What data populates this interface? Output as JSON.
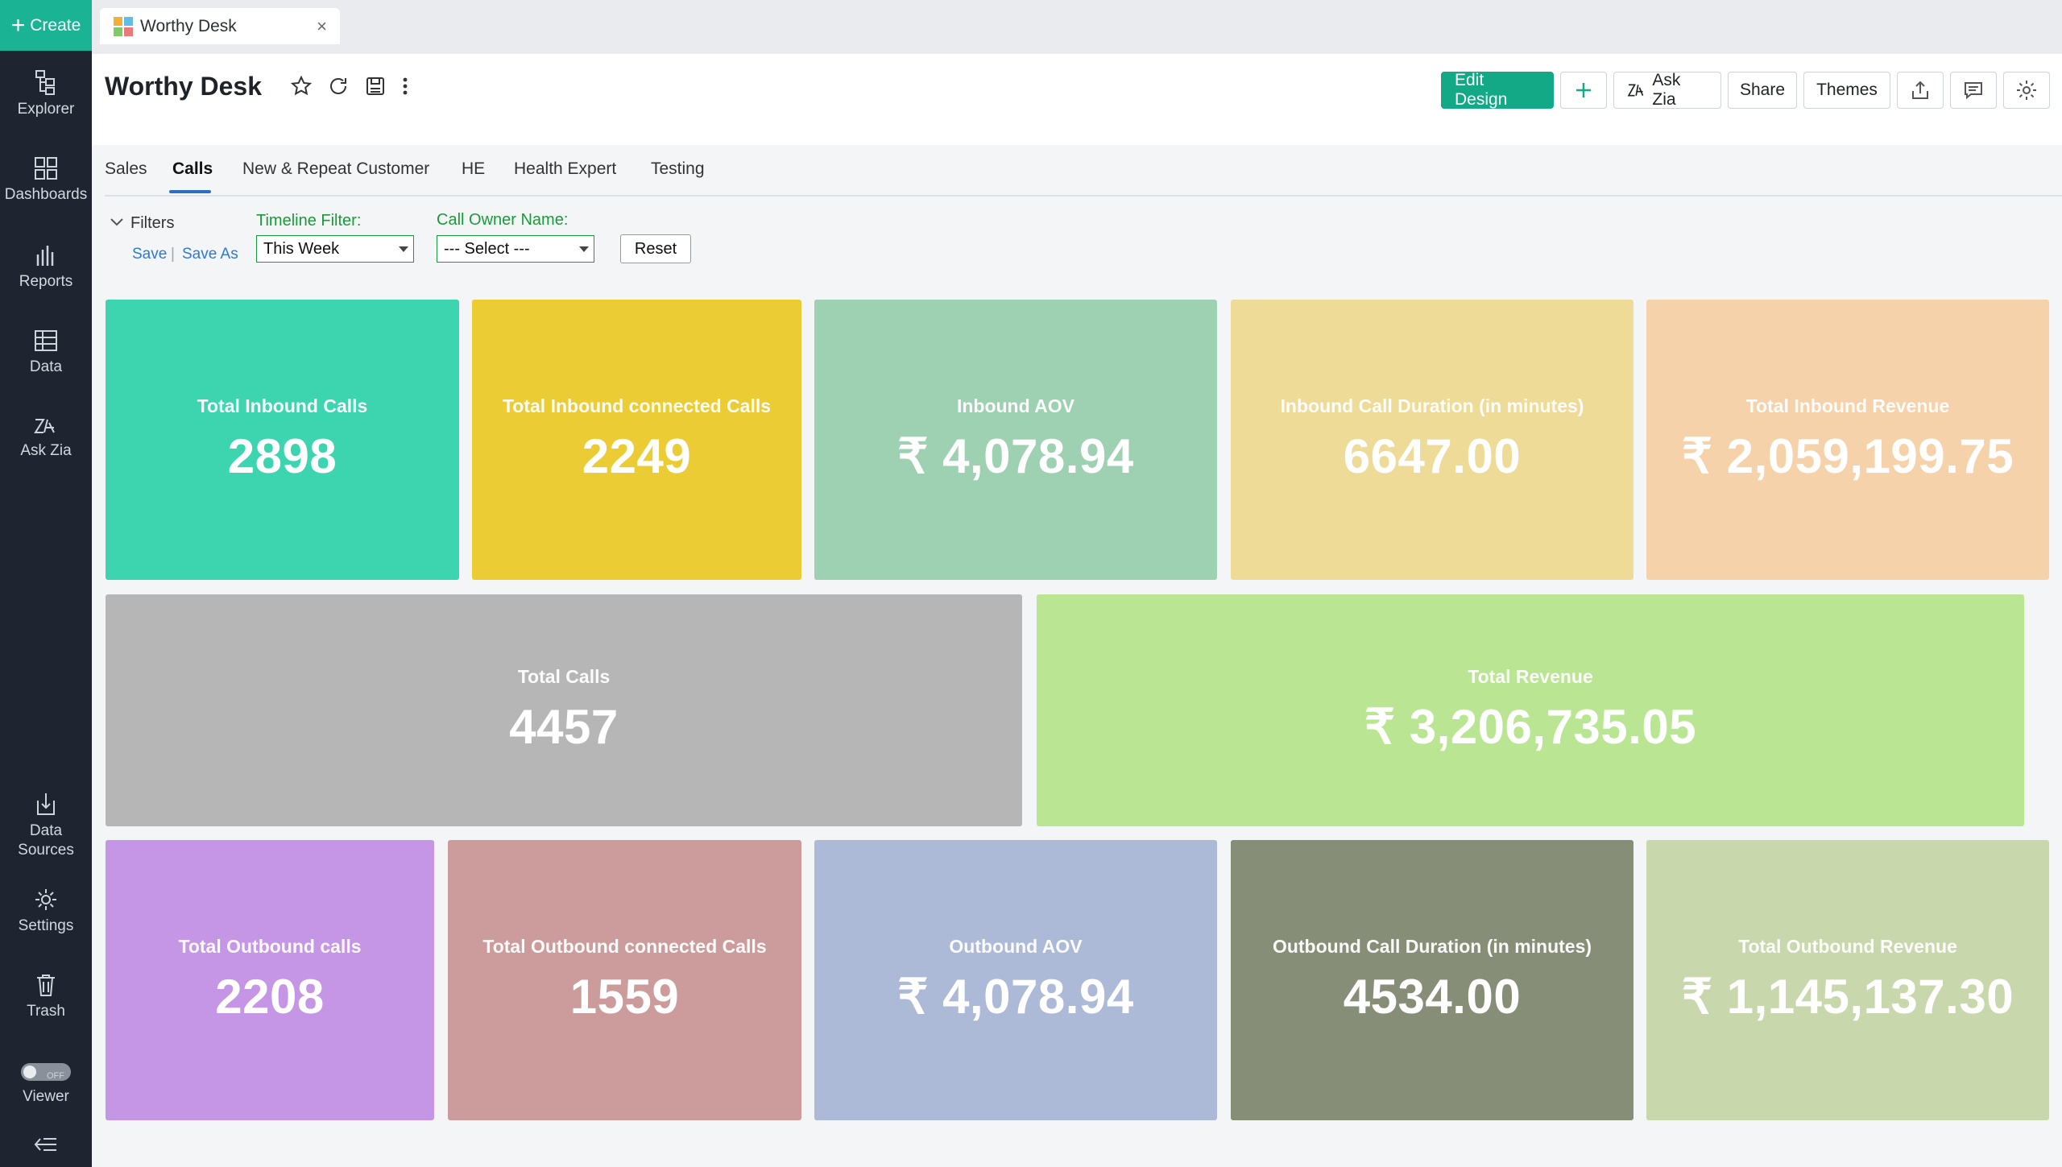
{
  "sidebar": {
    "create_label": "Create",
    "items": [
      {
        "label": "Explorer",
        "icon": "explorer-icon"
      },
      {
        "label": "Dashboards",
        "icon": "dashboards-icon"
      },
      {
        "label": "Reports",
        "icon": "reports-icon"
      },
      {
        "label": "Data",
        "icon": "data-icon"
      },
      {
        "label": "Ask Zia",
        "icon": "ask-zia-icon"
      },
      {
        "label": "Data Sources",
        "icon": "data-sources-icon"
      },
      {
        "label": "Settings",
        "icon": "settings-icon"
      },
      {
        "label": "Trash",
        "icon": "trash-icon"
      },
      {
        "label": "Viewer",
        "icon": "viewer-toggle"
      }
    ],
    "viewer_toggle_text": "OFF"
  },
  "tab": {
    "title": "Worthy Desk",
    "close": "×"
  },
  "header": {
    "title": "Worthy Desk",
    "edit_design": "Edit Design",
    "ask_zia": "Ask Zia",
    "share": "Share",
    "themes": "Themes"
  },
  "dashboard_tabs": [
    "Sales",
    "Calls",
    "New & Repeat Customer",
    "HE",
    "Health Expert",
    "Testing"
  ],
  "active_tab": "Calls",
  "filters": {
    "title": "Filters",
    "save": "Save",
    "separator": "|",
    "save_as": "Save As",
    "timeline_label": "Timeline Filter:",
    "timeline_value": "This Week",
    "owner_label": "Call Owner Name:",
    "owner_value": "--- Select ---",
    "reset": "Reset"
  },
  "cards": [
    {
      "label": "Total Inbound Calls",
      "value": "2898",
      "color": "#3dd4b0"
    },
    {
      "label": "Total Inbound connected Calls",
      "value": "2249",
      "color": "#ebcc35"
    },
    {
      "label": "Inbound AOV",
      "value": "₹ 4,078.94",
      "color": "#9ed0b2"
    },
    {
      "label": "Inbound Call Duration (in minutes)",
      "value": "6647.00",
      "color": "#efdb98"
    },
    {
      "label": "Total Inbound Revenue",
      "value": "₹ 2,059,199.75",
      "color": "#f6d2aa"
    },
    {
      "label": "Total Calls",
      "value": "4457",
      "color": "#b7b6b7"
    },
    {
      "label": "Total Revenue",
      "value": "₹ 3,206,735.05",
      "color": "#bae593"
    },
    {
      "label": "Total Outbound calls",
      "value": "2208",
      "color": "#c595e6"
    },
    {
      "label": "Total Outbound connected Calls",
      "value": "1559",
      "color": "#cc9b9b"
    },
    {
      "label": "Outbound AOV",
      "value": "₹ 4,078.94",
      "color": "#acbad8"
    },
    {
      "label": "Outbound Call Duration (in minutes)",
      "value": "4534.00",
      "color": "#878e78"
    },
    {
      "label": "Total Outbound Revenue",
      "value": "₹ 1,145,137.30",
      "color": "#c9d7ac"
    }
  ]
}
